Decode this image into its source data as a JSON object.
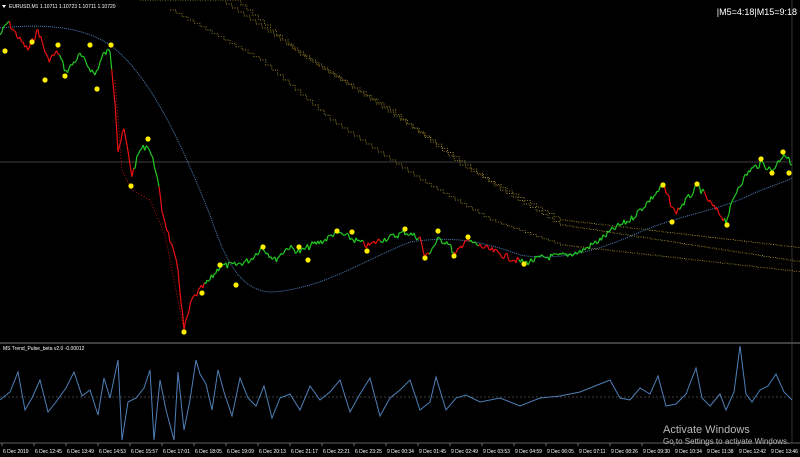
{
  "header": {
    "symbol_info": "EURUSD,M1  1.10711 1.10723 1.10711 1.10720",
    "timer": "|M5=4:18|M15=9:18"
  },
  "indicator": {
    "title": "MS Trend_Pulse_beta v2.0 -0.00012"
  },
  "time_axis": {
    "labels": [
      "6 Dec 2019",
      "6 Dec 12:45",
      "6 Dec 13:49",
      "6 Dec 14:53",
      "6 Dec 15:57",
      "6 Dec 17:01",
      "6 Dec 18:05",
      "6 Dec 19:09",
      "6 Dec 20:13",
      "6 Dec 21:17",
      "6 Dec 22:21",
      "6 Dec 23:25",
      "9 Dec 00:34",
      "9 Dec 01:45",
      "9 Dec 02:49",
      "9 Dec 03:53",
      "9 Dec 04:59",
      "9 Dec 06:05",
      "9 Dec 07:11",
      "9 Dec 08:26",
      "9 Dec 09:30",
      "9 Dec 10:34",
      "9 Dec 11:38",
      "9 Dec 12:42",
      "9 Dec 13:46"
    ]
  },
  "watermark": {
    "line1": "Activate Windows",
    "line2": "Go to Settings to activate Windows."
  },
  "colors": {
    "background": "#000000",
    "up_price": "#22cc22",
    "down_price": "#ee1111",
    "swing_dot": "#ffee00",
    "moving_average": "#4f7fb8",
    "channel_line": "#a08a2a",
    "oscillator": "#4f7fb8",
    "grid": "#808080"
  }
}
